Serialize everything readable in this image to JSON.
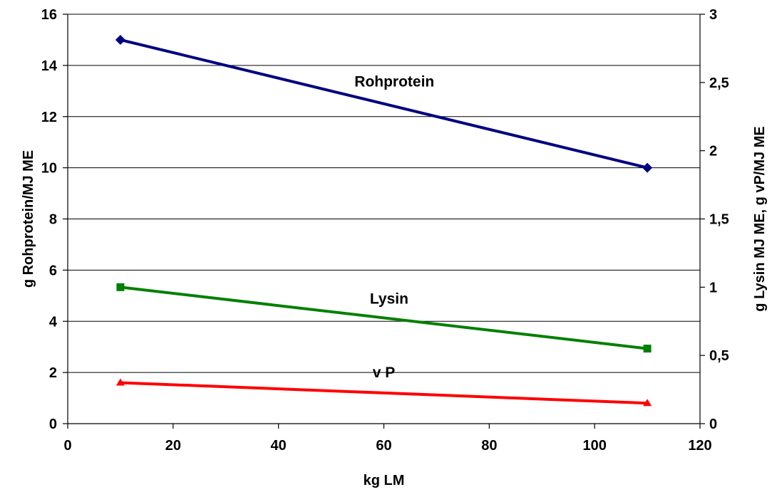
{
  "chart_data": {
    "type": "line",
    "title": "",
    "xlabel": "kg LM",
    "ylabel_left": "g Rohprotein/MJ ME",
    "ylabel_right": "g Lysin MJ ME, g vP/MJ ME",
    "xlim": [
      0,
      120
    ],
    "ylim_left": [
      0,
      16
    ],
    "ylim_right": [
      0,
      3
    ],
    "x_ticks": [
      "0",
      "20",
      "40",
      "60",
      "80",
      "100",
      "120"
    ],
    "y_left_ticks": [
      "0",
      "2",
      "4",
      "6",
      "8",
      "10",
      "12",
      "14",
      "16"
    ],
    "y_right_ticks": [
      "0",
      "0,5",
      "1",
      "1,5",
      "2",
      "2,5",
      "3"
    ],
    "grid": "horizontal",
    "legend": "none",
    "series": [
      {
        "name": "Rohprotein",
        "axis": "left",
        "color": "#000080",
        "marker": "diamond",
        "x": [
          10,
          110
        ],
        "y": [
          15,
          10
        ]
      },
      {
        "name": "Lysin",
        "axis": "right",
        "color": "#008000",
        "marker": "square",
        "x": [
          10,
          110
        ],
        "y": [
          1.0,
          0.55
        ]
      },
      {
        "name": "v P",
        "axis": "right",
        "color": "#ff0000",
        "marker": "triangle",
        "x": [
          10,
          110
        ],
        "y": [
          0.3,
          0.15
        ]
      }
    ]
  }
}
